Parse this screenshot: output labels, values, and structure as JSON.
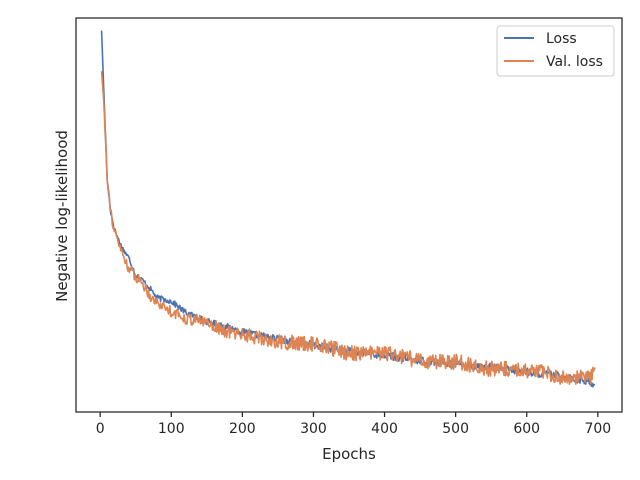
{
  "chart_data": {
    "type": "line",
    "title": "",
    "xlabel": "Epochs",
    "ylabel": "Negative log-likelihood",
    "xlim": [
      -34,
      734
    ],
    "xticks": [
      0,
      100,
      200,
      300,
      400,
      500,
      600,
      700
    ],
    "ylim": [
      0,
      1
    ],
    "yticks_shown": false,
    "grid": false,
    "legend_position": "top-right",
    "series": [
      {
        "name": "Loss",
        "color": "#4c72b0",
        "x": [
          2,
          5,
          10,
          15,
          20,
          30,
          40,
          50,
          60,
          70,
          80,
          100,
          120,
          150,
          175,
          200,
          250,
          300,
          350,
          400,
          450,
          500,
          550,
          600,
          650,
          690,
          696
        ],
        "y": [
          0.968,
          0.82,
          0.587,
          0.506,
          0.464,
          0.419,
          0.392,
          0.348,
          0.334,
          0.314,
          0.29,
          0.281,
          0.253,
          0.23,
          0.218,
          0.203,
          0.185,
          0.17,
          0.154,
          0.144,
          0.131,
          0.12,
          0.113,
          0.102,
          0.091,
          0.075,
          0.068
        ]
      },
      {
        "name": "Val. loss",
        "color": "#dd8452",
        "x": [
          2,
          5,
          10,
          15,
          20,
          30,
          40,
          50,
          60,
          70,
          80,
          100,
          120,
          150,
          175,
          200,
          250,
          300,
          350,
          400,
          450,
          500,
          550,
          600,
          650,
          690,
          696
        ],
        "y": [
          0.865,
          0.789,
          0.595,
          0.506,
          0.458,
          0.407,
          0.366,
          0.343,
          0.326,
          0.296,
          0.278,
          0.256,
          0.238,
          0.229,
          0.204,
          0.198,
          0.177,
          0.173,
          0.15,
          0.149,
          0.13,
          0.127,
          0.109,
          0.107,
          0.089,
          0.086,
          0.113
        ]
      }
    ]
  }
}
